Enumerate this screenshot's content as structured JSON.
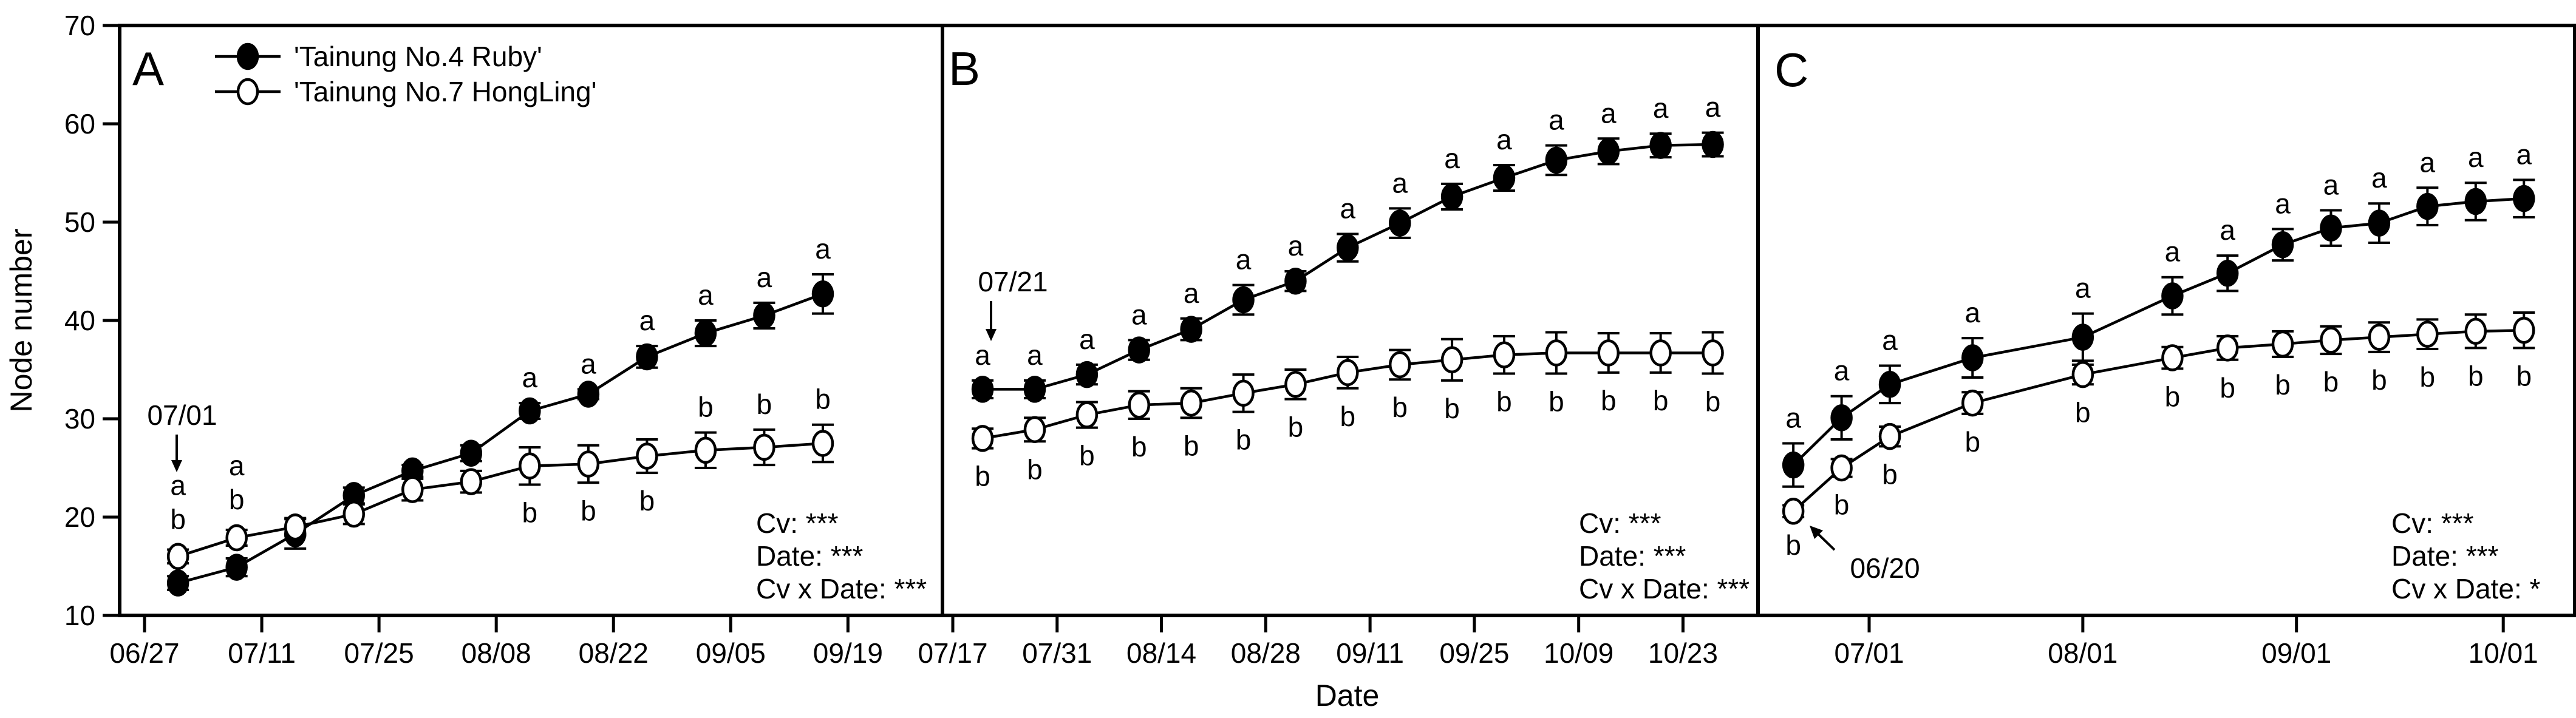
{
  "figure": {
    "ylabel": "Node number",
    "xlabel": "Date",
    "y_ticks": [
      10,
      20,
      30,
      40,
      50,
      60,
      70
    ],
    "ylim": [
      10,
      70
    ],
    "ink_color": "#000000",
    "background_color": "#ffffff",
    "legend": [
      {
        "label": "'Tainung No.4 Ruby'",
        "marker": "filled-circle"
      },
      {
        "label": "'Tainung No.7 HongLing'",
        "marker": "open-circle"
      }
    ]
  },
  "chart_data": [
    {
      "type": "line",
      "panel": "A",
      "x_ticks": [
        "06/27",
        "07/11",
        "07/25",
        "08/08",
        "08/22",
        "09/05",
        "09/19"
      ],
      "annotation": {
        "text": "07/01",
        "arrow": "down"
      },
      "stats": [
        "Cv: ***",
        "Date: ***",
        "Cv x Date: ***"
      ],
      "series": [
        {
          "name": "'Tainung No.4 Ruby'",
          "marker": "filled",
          "dates": [
            "07/01",
            "07/08",
            "07/15",
            "07/22",
            "07/29",
            "08/05",
            "08/12",
            "08/19",
            "08/26",
            "09/02",
            "09/09",
            "09/16"
          ],
          "values": [
            13.3,
            14.9,
            18.3,
            22.2,
            24.7,
            26.5,
            30.8,
            32.5,
            36.3,
            38.7,
            40.5,
            42.7
          ],
          "errors": [
            0.7,
            0.9,
            1.5,
            0.8,
            0.6,
            0.8,
            0.8,
            0.5,
            1.1,
            1.3,
            1.3,
            2.0
          ],
          "letters": [
            "a",
            "a",
            "",
            "",
            "",
            "",
            "a",
            "a",
            "a",
            "a",
            "a",
            "a"
          ],
          "letter_pos": [
            "stack",
            "stack",
            "",
            "",
            "",
            "",
            "above",
            "above",
            "above",
            "above",
            "above",
            "above"
          ]
        },
        {
          "name": "'Tainung No.7 HongLing'",
          "marker": "open",
          "dates": [
            "07/01",
            "07/08",
            "07/15",
            "07/22",
            "07/29",
            "08/05",
            "08/12",
            "08/19",
            "08/26",
            "09/02",
            "09/09",
            "09/16"
          ],
          "values": [
            16.0,
            17.9,
            19.0,
            20.3,
            22.8,
            23.6,
            25.2,
            25.4,
            26.2,
            26.8,
            27.1,
            27.5
          ],
          "errors": [
            0.7,
            0.8,
            0.9,
            1.0,
            1.1,
            1.1,
            1.9,
            1.9,
            1.7,
            1.8,
            1.8,
            1.9
          ],
          "letters": [
            "b",
            "b",
            "",
            "",
            "",
            "",
            "b",
            "b",
            "b",
            "b",
            "b",
            "b"
          ],
          "letter_pos": [
            "stack",
            "stack",
            "",
            "",
            "",
            "",
            "below",
            "below",
            "below",
            "above",
            "above",
            "above"
          ]
        }
      ]
    },
    {
      "type": "line",
      "panel": "B",
      "x_ticks": [
        "07/17",
        "07/31",
        "08/14",
        "08/28",
        "09/11",
        "09/25",
        "10/09",
        "10/23"
      ],
      "annotation": {
        "text": "07/21",
        "arrow": "down"
      },
      "stats": [
        "Cv: ***",
        "Date: ***",
        "Cv x Date: ***"
      ],
      "series": [
        {
          "name": "'Tainung No.4 Ruby'",
          "marker": "filled",
          "dates": [
            "07/21",
            "07/28",
            "08/04",
            "08/11",
            "08/18",
            "08/25",
            "09/01",
            "09/08",
            "09/15",
            "09/22",
            "09/29",
            "10/06",
            "10/13",
            "10/20",
            "10/27"
          ],
          "values": [
            33.0,
            33.0,
            34.5,
            37.0,
            39.1,
            42.1,
            44.0,
            47.4,
            49.9,
            52.6,
            54.5,
            56.3,
            57.2,
            57.8,
            57.9
          ],
          "errors": [
            0.9,
            0.9,
            1.0,
            1.0,
            1.1,
            1.5,
            1.0,
            1.4,
            1.5,
            1.3,
            1.3,
            1.5,
            1.3,
            1.2,
            1.2
          ],
          "letters": [
            "a",
            "a",
            "a",
            "a",
            "a",
            "a",
            "a",
            "a",
            "a",
            "a",
            "a",
            "a",
            "a",
            "a",
            "a"
          ],
          "letter_pos": [
            "above",
            "above",
            "above",
            "above",
            "above",
            "above",
            "above",
            "above",
            "above",
            "above",
            "above",
            "above",
            "above",
            "above",
            "above"
          ]
        },
        {
          "name": "'Tainung No.7 HongLing'",
          "marker": "open",
          "dates": [
            "07/21",
            "07/28",
            "08/04",
            "08/11",
            "08/18",
            "08/25",
            "09/01",
            "09/08",
            "09/15",
            "09/22",
            "09/29",
            "10/06",
            "10/13",
            "10/20",
            "10/27"
          ],
          "values": [
            28.0,
            28.9,
            30.4,
            31.4,
            31.6,
            32.6,
            33.5,
            34.7,
            35.5,
            36.0,
            36.5,
            36.7,
            36.7,
            36.7,
            36.7
          ],
          "errors": [
            1.0,
            1.2,
            1.3,
            1.4,
            1.5,
            1.9,
            1.5,
            1.6,
            1.5,
            2.1,
            1.9,
            2.1,
            2.0,
            2.0,
            2.1
          ],
          "letters": [
            "b",
            "b",
            "b",
            "b",
            "b",
            "b",
            "b",
            "b",
            "b",
            "b",
            "b",
            "b",
            "b",
            "b",
            "b"
          ],
          "letter_pos": [
            "below",
            "below",
            "below",
            "below",
            "below",
            "below",
            "below",
            "below",
            "below",
            "below",
            "below",
            "below",
            "below",
            "below",
            "below"
          ]
        }
      ]
    },
    {
      "type": "line",
      "panel": "C",
      "x_ticks": [
        "07/01",
        "08/01",
        "09/01",
        "10/01"
      ],
      "annotation": {
        "text": "06/20",
        "arrow": "up-left"
      },
      "stats": [
        "Cv: ***",
        "Date: ***",
        "Cv x Date: *"
      ],
      "series": [
        {
          "name": "'Tainung No.4 Ruby'",
          "marker": "filled",
          "dates": [
            "06/20",
            "06/27",
            "07/04",
            "07/16",
            "08/01",
            "08/14",
            "08/22",
            "08/30",
            "09/06",
            "09/13",
            "09/20",
            "09/27",
            "10/04"
          ],
          "values": [
            25.3,
            30.1,
            33.5,
            36.2,
            38.3,
            42.5,
            44.8,
            47.7,
            49.4,
            49.9,
            51.6,
            52.1,
            52.4
          ],
          "errors": [
            2.2,
            2.2,
            1.9,
            2.0,
            2.4,
            1.9,
            1.8,
            1.6,
            1.8,
            2.0,
            1.9,
            1.9,
            1.9
          ],
          "letters": [
            "a",
            "a",
            "a",
            "a",
            "a",
            "a",
            "a",
            "a",
            "a",
            "a",
            "a",
            "a",
            "a"
          ],
          "letter_pos": [
            "above",
            "above",
            "above",
            "above",
            "above",
            "above",
            "above",
            "above",
            "above",
            "above",
            "above",
            "above",
            "above"
          ]
        },
        {
          "name": "'Tainung No.7 HongLing'",
          "marker": "open",
          "dates": [
            "06/20",
            "06/27",
            "07/04",
            "07/16",
            "08/01",
            "08/14",
            "08/22",
            "08/30",
            "09/06",
            "09/13",
            "09/20",
            "09/27",
            "10/04"
          ],
          "values": [
            20.6,
            25.0,
            28.2,
            31.6,
            34.5,
            36.2,
            37.2,
            37.6,
            38.0,
            38.3,
            38.6,
            38.9,
            39.0
          ],
          "errors": [
            0.6,
            0.9,
            1.0,
            1.1,
            1.0,
            1.1,
            1.2,
            1.3,
            1.4,
            1.5,
            1.5,
            1.7,
            1.8
          ],
          "letters": [
            "b",
            "b",
            "b",
            "b",
            "b",
            "b",
            "b",
            "b",
            "b",
            "b",
            "b",
            "b",
            "b"
          ],
          "letter_pos": [
            "below",
            "below",
            "below",
            "below",
            "below",
            "below",
            "below",
            "below",
            "below",
            "below",
            "below",
            "below",
            "below"
          ]
        }
      ]
    }
  ]
}
